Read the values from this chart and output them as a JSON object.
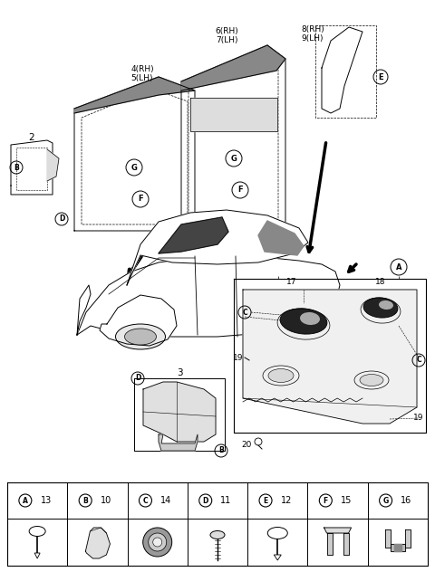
{
  "bg_color": "#ffffff",
  "lc": "#000000",
  "fig_w": 4.8,
  "fig_h": 6.32,
  "dpi": 100,
  "legend": [
    {
      "letter": "A",
      "num": "13"
    },
    {
      "letter": "B",
      "num": "10"
    },
    {
      "letter": "C",
      "num": "14"
    },
    {
      "letter": "D",
      "num": "11"
    },
    {
      "letter": "E",
      "num": "12"
    },
    {
      "letter": "F",
      "num": "15"
    },
    {
      "letter": "G",
      "num": "16"
    }
  ]
}
